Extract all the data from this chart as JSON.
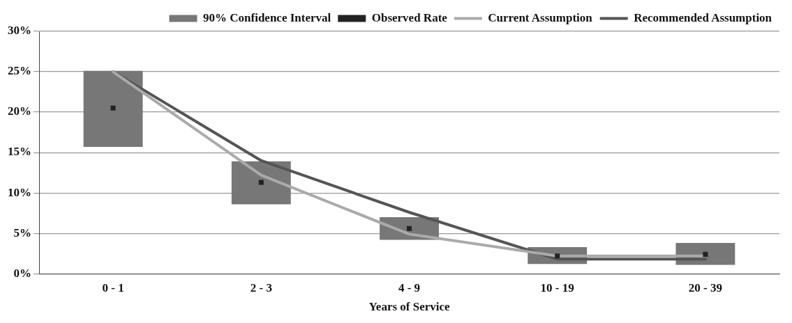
{
  "chart_data": {
    "type": "bar",
    "xlabel": "Years of Service",
    "categories": [
      "0 - 1",
      "2 - 3",
      "4 - 9",
      "10 - 19",
      "20 - 39"
    ],
    "series": [
      {
        "name": "90% Confidence Interval",
        "color": "#777777",
        "base": [
          15.7,
          8.6,
          4.2,
          1.2,
          1.1
        ],
        "values": [
          9.4,
          5.3,
          2.8,
          2.1,
          2.7
        ]
      },
      {
        "name": "Observed Rate",
        "type": "scatter",
        "color": "#222222",
        "marker": "square",
        "values": [
          20.5,
          11.3,
          5.6,
          2.2,
          2.4
        ]
      },
      {
        "name": "Current Assumption",
        "type": "line",
        "color": "#aaaaaa",
        "marker": "none",
        "values": [
          25,
          12.2,
          4.9,
          2.2,
          2.2
        ]
      },
      {
        "name": "Recommended Assumption",
        "type": "line",
        "color": "#555555",
        "marker": "none",
        "values": [
          25,
          14,
          7.6,
          1.8,
          1.8
        ]
      }
    ],
    "ylim": [
      0,
      30
    ],
    "yticks": [
      {
        "value": 0,
        "label": "0%"
      },
      {
        "value": 5,
        "label": "5%"
      },
      {
        "value": 10,
        "label": "10%"
      },
      {
        "value": 15,
        "label": "15%"
      },
      {
        "value": 20,
        "label": "20%"
      },
      {
        "value": 25,
        "label": "25%"
      },
      {
        "value": 30,
        "label": "30%"
      }
    ],
    "grid": "y",
    "legend": "top right"
  }
}
